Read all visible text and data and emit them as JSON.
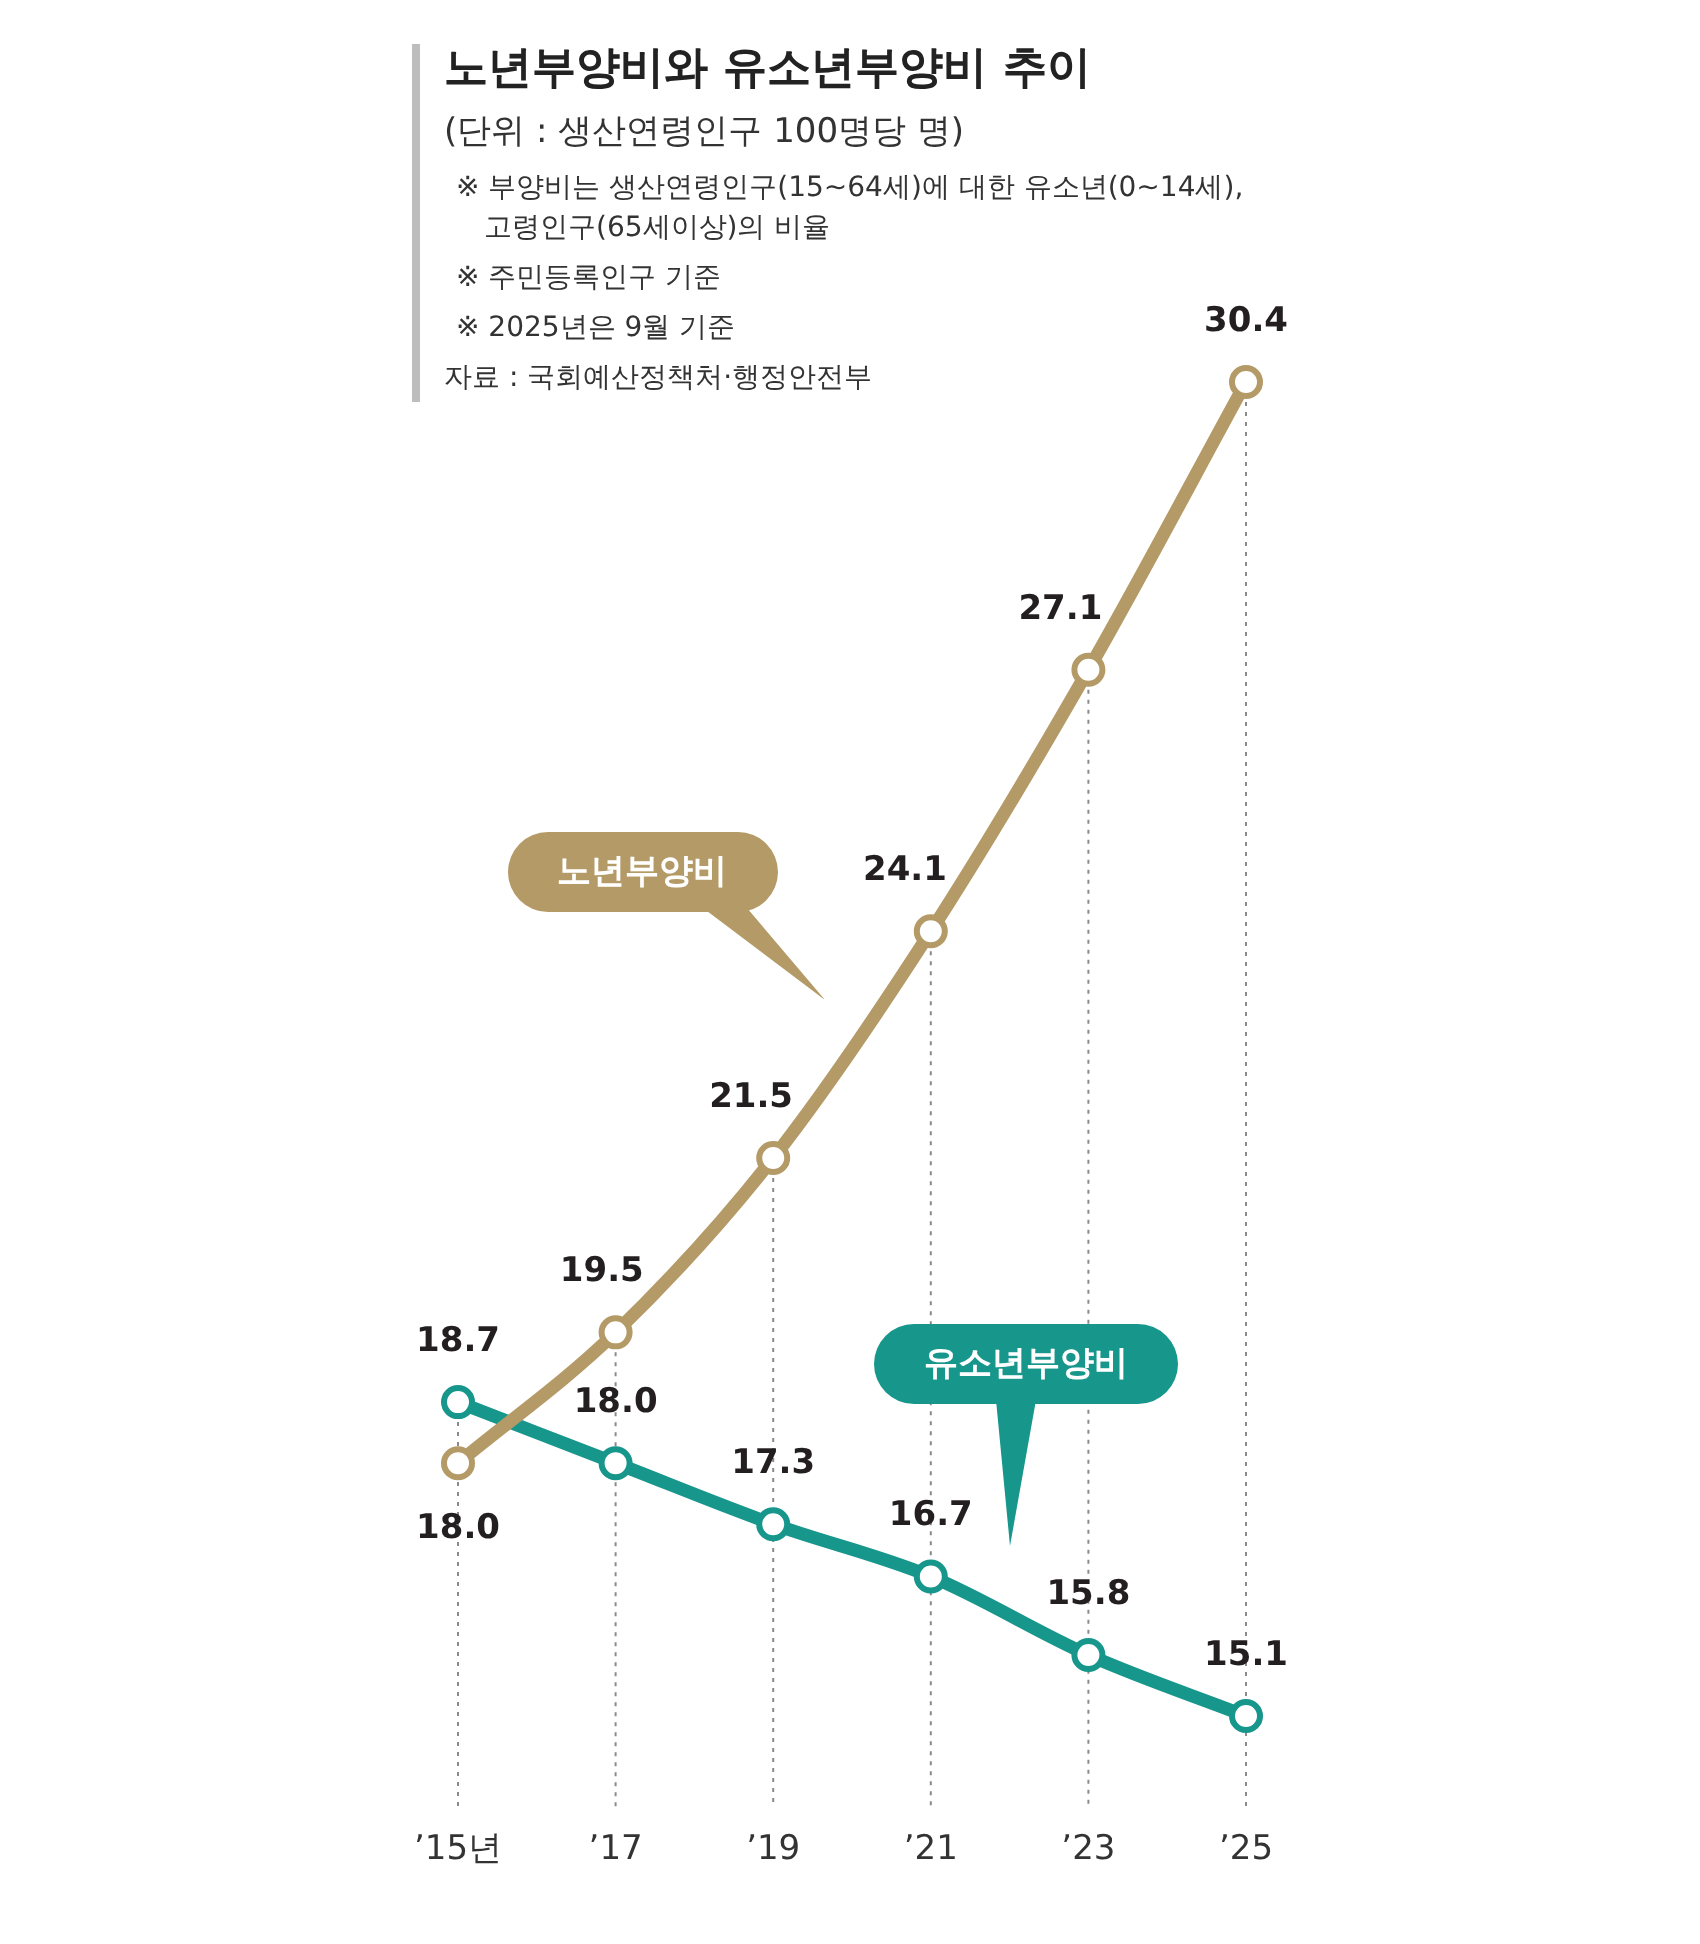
{
  "chart_data": {
    "type": "line",
    "title": "노년부양비와 유소년부양비 추이",
    "subtitle": "(단위 : 생산연령인구 100명당 명)",
    "annotations": [
      "※ 부양비는 생산연령인구(15~64세)에 대한 유소년(0~14세), 고령인구(65세이상)의 비율",
      "※ 주민등록인구 기준",
      "※ 2025년은 9월 기준",
      "자료 : 국회예산정책처·행정안전부"
    ],
    "categories": [
      "’15년",
      "’17",
      "’19",
      "’21",
      "’23",
      "’25"
    ],
    "series": [
      {
        "name": "노년부양비",
        "color": "#b49a66",
        "values": [
          18.0,
          19.5,
          21.5,
          24.1,
          27.1,
          30.4
        ],
        "value_labels": [
          "18.0",
          "19.5",
          "21.5",
          "24.1",
          "27.1",
          "30.4"
        ]
      },
      {
        "name": "유소년부양비",
        "color": "#17968c",
        "values": [
          18.7,
          18.0,
          17.3,
          16.7,
          15.8,
          15.1
        ],
        "value_labels": [
          "18.7",
          "18.0",
          "17.3",
          "16.7",
          "15.8",
          "15.1"
        ]
      }
    ],
    "tick_labels": "x",
    "grid": "x",
    "marker": "circle",
    "line_style": "solid"
  }
}
